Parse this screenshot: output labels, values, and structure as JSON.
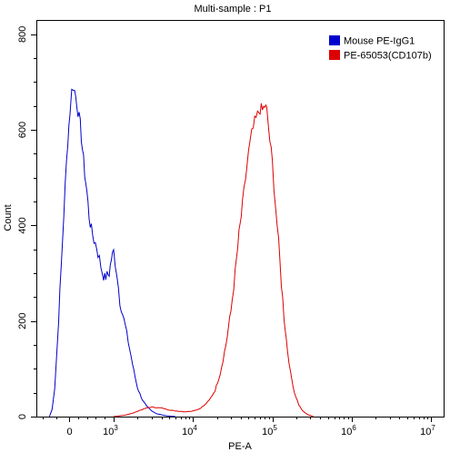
{
  "chart_data": {
    "type": "line",
    "title": "Multi-sample : P1",
    "xlabel": "PE-A",
    "ylabel": "Count",
    "x_scale": "biexponential (log above 10^3, linear near 0)",
    "ylim": [
      0,
      830
    ],
    "y_ticks": [
      0,
      200,
      400,
      600,
      800
    ],
    "x_ticks": [
      {
        "value": 0,
        "label": "0"
      },
      {
        "value": 1000,
        "label": "10",
        "sup": "3"
      },
      {
        "value": 10000,
        "label": "10",
        "sup": "4"
      },
      {
        "value": 100000,
        "label": "10",
        "sup": "5"
      },
      {
        "value": 1000000,
        "label": "10",
        "sup": "6"
      },
      {
        "value": 10000000,
        "label": "10",
        "sup": "7"
      }
    ],
    "grid": false,
    "legend_position": "top-right",
    "series": [
      {
        "name": "Mouse PE-IgG1",
        "color": "#0000cc",
        "points": [
          [
            -300,
            0
          ],
          [
            -260,
            15
          ],
          [
            -220,
            60
          ],
          [
            -180,
            150
          ],
          [
            -140,
            260
          ],
          [
            -100,
            370
          ],
          [
            -60,
            480
          ],
          [
            -20,
            580
          ],
          [
            20,
            640
          ],
          [
            60,
            680
          ],
          [
            100,
            692
          ],
          [
            150,
            670
          ],
          [
            200,
            640
          ],
          [
            250,
            610
          ],
          [
            300,
            560
          ],
          [
            350,
            510
          ],
          [
            400,
            470
          ],
          [
            450,
            420
          ],
          [
            500,
            390
          ],
          [
            560,
            370
          ],
          [
            620,
            355
          ],
          [
            680,
            330
          ],
          [
            750,
            300
          ],
          [
            800,
            290
          ],
          [
            850,
            295
          ],
          [
            900,
            300
          ],
          [
            950,
            330
          ],
          [
            1000,
            345
          ],
          [
            1100,
            300
          ],
          [
            1200,
            240
          ],
          [
            1400,
            190
          ],
          [
            1600,
            140
          ],
          [
            1800,
            95
          ],
          [
            2000,
            60
          ],
          [
            2300,
            35
          ],
          [
            2600,
            22
          ],
          [
            3000,
            12
          ],
          [
            3500,
            6
          ],
          [
            4500,
            2
          ],
          [
            6000,
            0
          ]
        ]
      },
      {
        "name": "PE-65053(CD107b)",
        "color": "#dd0000",
        "points": [
          [
            1000,
            0
          ],
          [
            1400,
            3
          ],
          [
            1800,
            8
          ],
          [
            2200,
            14
          ],
          [
            2600,
            18
          ],
          [
            3000,
            20
          ],
          [
            4000,
            18
          ],
          [
            5000,
            14
          ],
          [
            6000,
            12
          ],
          [
            8000,
            10
          ],
          [
            10000,
            12
          ],
          [
            12000,
            16
          ],
          [
            14000,
            24
          ],
          [
            16000,
            34
          ],
          [
            19000,
            55
          ],
          [
            22000,
            90
          ],
          [
            26000,
            150
          ],
          [
            30000,
            220
          ],
          [
            34000,
            300
          ],
          [
            38000,
            380
          ],
          [
            42000,
            440
          ],
          [
            46000,
            500
          ],
          [
            50000,
            550
          ],
          [
            55000,
            590
          ],
          [
            60000,
            615
          ],
          [
            65000,
            630
          ],
          [
            70000,
            645
          ],
          [
            75000,
            640
          ],
          [
            80000,
            650
          ],
          [
            85000,
            640
          ],
          [
            90000,
            600
          ],
          [
            100000,
            530
          ],
          [
            110000,
            440
          ],
          [
            120000,
            360
          ],
          [
            130000,
            280
          ],
          [
            140000,
            210
          ],
          [
            155000,
            140
          ],
          [
            170000,
            90
          ],
          [
            190000,
            50
          ],
          [
            215000,
            25
          ],
          [
            240000,
            12
          ],
          [
            280000,
            4
          ],
          [
            330000,
            0
          ]
        ]
      }
    ]
  }
}
